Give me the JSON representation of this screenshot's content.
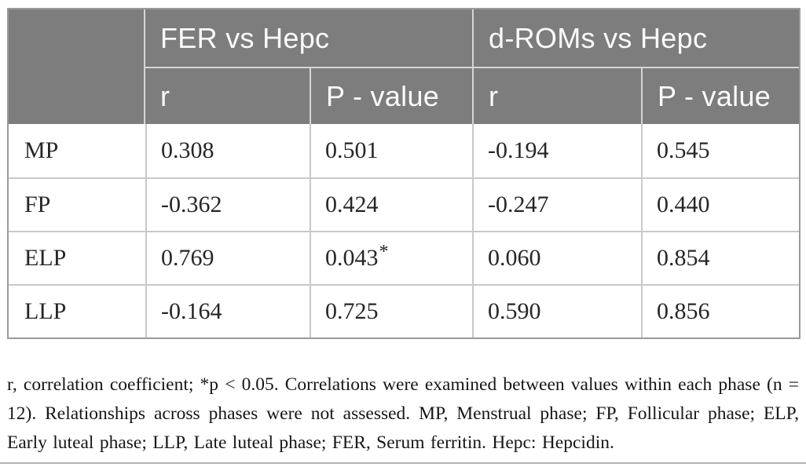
{
  "table": {
    "group_headers": [
      "FER vs Hepc",
      "d-ROMs vs Hepc"
    ],
    "sub_headers": [
      "r",
      "P - value",
      "r",
      "P - value"
    ],
    "rows": [
      {
        "label": "MP",
        "fer_r": "0.308",
        "fer_p": "0.501",
        "drom_r": "-0.194",
        "drom_p": "0.545"
      },
      {
        "label": "FP",
        "fer_r": "-0.362",
        "fer_p": "0.424",
        "drom_r": "-0.247",
        "drom_p": "0.440"
      },
      {
        "label": "ELP",
        "fer_r": "0.769",
        "fer_p": "0.043",
        "fer_p_flag": "*",
        "drom_r": "0.060",
        "drom_p": "0.854"
      },
      {
        "label": "LLP",
        "fer_r": "-0.164",
        "fer_p": "0.725",
        "drom_r": "0.590",
        "drom_p": "0.856"
      }
    ]
  },
  "footnote": {
    "text": "r, correlation coefficient; *p < 0.05. Correlations were examined between values within each phase (n = 12). Relationships across phases were not assessed. MP, Menstrual phase; FP, Follicular phase; ELP, Early luteal phase; LLP, Late luteal phase; FER, Serum ferritin. Hepc: Hepcidin."
  },
  "colors": {
    "header_bg": "#7d7d7d",
    "header_text": "#fafafa",
    "body_text": "#262626",
    "inner_border": "#c9c9c9",
    "outer_border": "#9a9a9a"
  }
}
